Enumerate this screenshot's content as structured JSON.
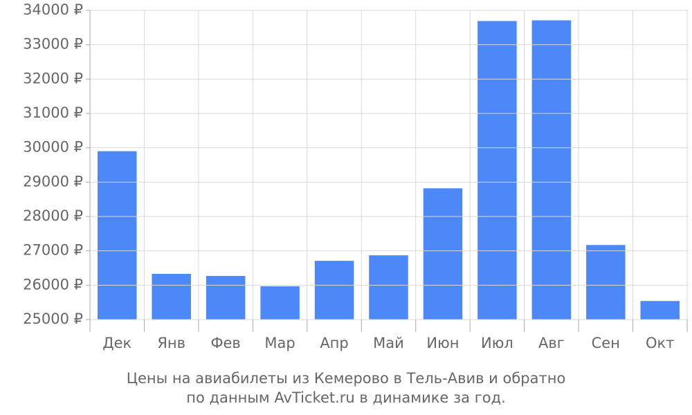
{
  "chart_data": {
    "type": "bar",
    "title": [
      "Цены на авиабилеты из Кемерово в Тель-Авив и обратно",
      "по данным AvTicket.ru в динамике за год."
    ],
    "categories": [
      "Дек",
      "Янв",
      "Фев",
      "Мар",
      "Апр",
      "Май",
      "Июн",
      "Июл",
      "Авг",
      "Сен",
      "Окт"
    ],
    "values": [
      29900,
      26330,
      26270,
      25970,
      26710,
      26870,
      28820,
      33690,
      33710,
      27170,
      25540
    ],
    "color": "#4d88f9",
    "ylim": [
      25000,
      34000
    ],
    "yticks": [
      {
        "value": 25000,
        "label": "25000 ₽"
      },
      {
        "value": 26000,
        "label": "26000 ₽"
      },
      {
        "value": 27000,
        "label": "27000 ₽"
      },
      {
        "value": 28000,
        "label": "28000 ₽"
      },
      {
        "value": 29000,
        "label": "29000 ₽"
      },
      {
        "value": 30000,
        "label": "30000 ₽"
      },
      {
        "value": 31000,
        "label": "31000 ₽"
      },
      {
        "value": 32000,
        "label": "32000 ₽"
      },
      {
        "value": 33000,
        "label": "33000 ₽"
      },
      {
        "value": 34000,
        "label": "34000 ₽"
      }
    ],
    "grid": true
  }
}
